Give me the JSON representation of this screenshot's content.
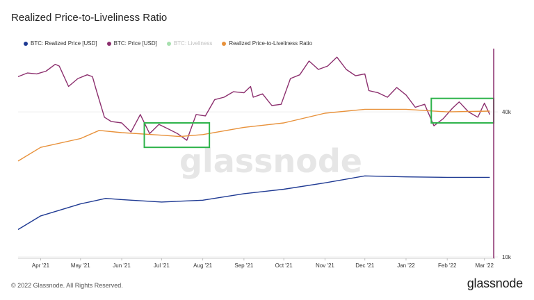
{
  "title": "Realized Price-to-Liveliness Ratio",
  "footer": "© 2022 Glassnode. All Rights Reserved.",
  "brand": "glassnode",
  "watermark": "glassnode",
  "legend": [
    {
      "label": "BTC: Realized Price [USD]",
      "color": "#1f3a93",
      "faded": false
    },
    {
      "label": "BTC: Price [USD]",
      "color": "#8c2f6e",
      "faded": false
    },
    {
      "label": "BTC: Liveliness",
      "color": "#3cba4c",
      "faded": true
    },
    {
      "label": "Realized Price-to-Liveliness Ratio",
      "color": "#e8913a",
      "faded": false
    }
  ],
  "chart_data": {
    "type": "line",
    "title": "Realized Price-to-Liveliness Ratio",
    "x_ticks": [
      "Apr '21",
      "May '21",
      "Jun '21",
      "Jul '21",
      "Aug '21",
      "Sep '21",
      "Oct '21",
      "Nov '21",
      "Dec '21",
      "Jan '22",
      "Feb '22",
      "Mar '22"
    ],
    "y_right_ticks": [
      "40k",
      "10k"
    ],
    "y_scale": "log",
    "grid": "horizontal",
    "legend_position": "top-left",
    "series": [
      {
        "name": "BTC: Price [USD]",
        "color": "#8c2f6e",
        "x": [
          "2021-03-15",
          "2021-03-22",
          "2021-03-29",
          "2021-04-05",
          "2021-04-12",
          "2021-04-15",
          "2021-04-22",
          "2021-04-29",
          "2021-05-06",
          "2021-05-10",
          "2021-05-13",
          "2021-05-19",
          "2021-05-24",
          "2021-06-01",
          "2021-06-08",
          "2021-06-15",
          "2021-06-22",
          "2021-06-29",
          "2021-07-06",
          "2021-07-13",
          "2021-07-20",
          "2021-07-27",
          "2021-08-03",
          "2021-08-10",
          "2021-08-17",
          "2021-08-24",
          "2021-09-01",
          "2021-09-06",
          "2021-09-08",
          "2021-09-15",
          "2021-09-22",
          "2021-09-29",
          "2021-10-06",
          "2021-10-13",
          "2021-10-20",
          "2021-10-27",
          "2021-11-03",
          "2021-11-10",
          "2021-11-17",
          "2021-11-24",
          "2021-12-01",
          "2021-12-04",
          "2021-12-11",
          "2021-12-18",
          "2021-12-25",
          "2022-01-01",
          "2022-01-08",
          "2022-01-15",
          "2022-01-22",
          "2022-01-29",
          "2022-02-05",
          "2022-02-10",
          "2022-02-17",
          "2022-02-24",
          "2022-03-01",
          "2022-03-05"
        ],
        "values": [
          56000,
          58000,
          57500,
          59000,
          63000,
          62000,
          51000,
          55000,
          57000,
          56000,
          49000,
          38000,
          36500,
          36000,
          33000,
          39000,
          32500,
          35500,
          34000,
          32500,
          30500,
          39000,
          38500,
          45000,
          46000,
          48500,
          48000,
          51000,
          46000,
          47500,
          42500,
          43000,
          55000,
          57000,
          65000,
          60000,
          62000,
          67500,
          60000,
          56500,
          57500,
          49000,
          48000,
          46000,
          50500,
          47000,
          41800,
          43000,
          35000,
          37500,
          41500,
          44000,
          40000,
          38000,
          43500,
          39000
        ]
      },
      {
        "name": "Realized Price-to-Liveliness Ratio",
        "color": "#e8913a",
        "x": [
          "2021-03-15",
          "2021-04-01",
          "2021-05-01",
          "2021-05-15",
          "2021-06-01",
          "2021-07-01",
          "2021-07-15",
          "2021-08-01",
          "2021-09-01",
          "2021-10-01",
          "2021-11-01",
          "2021-12-01",
          "2022-01-01",
          "2022-02-01",
          "2022-03-05"
        ],
        "values": [
          25000,
          28500,
          31000,
          33500,
          32800,
          32000,
          31600,
          32200,
          34500,
          36000,
          39500,
          41000,
          41000,
          40000,
          40300
        ]
      },
      {
        "name": "BTC: Realized Price [USD]",
        "color": "#1f3a93",
        "x": [
          "2021-03-15",
          "2021-04-01",
          "2021-05-01",
          "2021-05-20",
          "2021-06-01",
          "2021-07-01",
          "2021-08-01",
          "2021-09-01",
          "2021-10-01",
          "2021-11-01",
          "2021-12-01",
          "2022-01-01",
          "2022-02-01",
          "2022-03-05"
        ],
        "values": [
          13000,
          14800,
          16600,
          17500,
          17300,
          16900,
          17200,
          18300,
          19100,
          20300,
          21700,
          21500,
          21400,
          21400
        ]
      }
    ],
    "annotations": [
      {
        "type": "box",
        "label": "",
        "x_range": [
          "2021-06-18",
          "2021-08-06"
        ],
        "y_range": [
          28500,
          36000
        ],
        "color": "#2db34a"
      },
      {
        "type": "box",
        "label": "",
        "x_range": [
          "2022-01-20",
          "2022-03-08"
        ],
        "y_range": [
          36000,
          45500
        ],
        "color": "#2db34a"
      },
      {
        "type": "vline",
        "x": "2022-03-08",
        "color": "#8c2f6e"
      }
    ]
  }
}
